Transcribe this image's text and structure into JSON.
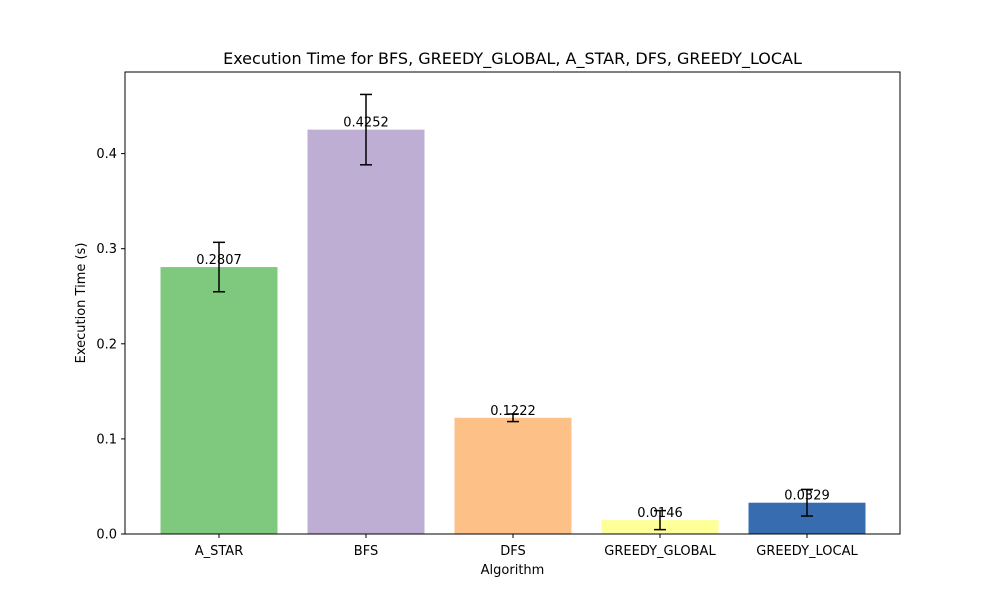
{
  "chart_data": {
    "type": "bar",
    "title": "Execution Time for BFS, GREEDY_GLOBAL, A_STAR, DFS, GREEDY_LOCAL",
    "xlabel": "Algorithm",
    "ylabel": "Execution Time (s)",
    "categories": [
      "A_STAR",
      "BFS",
      "DFS",
      "GREEDY_GLOBAL",
      "GREEDY_LOCAL"
    ],
    "values": [
      0.2807,
      0.4252,
      0.1222,
      0.0146,
      0.0329
    ],
    "value_labels": [
      "0.2807",
      "0.4252",
      "0.1222",
      "0.0146",
      "0.0329"
    ],
    "errors": [
      0.026,
      0.037,
      0.004,
      0.01,
      0.014
    ],
    "colors": [
      "#7fc97f",
      "#beaed4",
      "#fdc086",
      "#ffff99",
      "#386cb0"
    ],
    "ylim": [
      0,
      0.4858
    ],
    "yticks": [
      0.0,
      0.1,
      0.2,
      0.3,
      0.4
    ],
    "ytick_labels": [
      "0.0",
      "0.1",
      "0.2",
      "0.3",
      "0.4"
    ],
    "grid": false,
    "legend": "none"
  }
}
